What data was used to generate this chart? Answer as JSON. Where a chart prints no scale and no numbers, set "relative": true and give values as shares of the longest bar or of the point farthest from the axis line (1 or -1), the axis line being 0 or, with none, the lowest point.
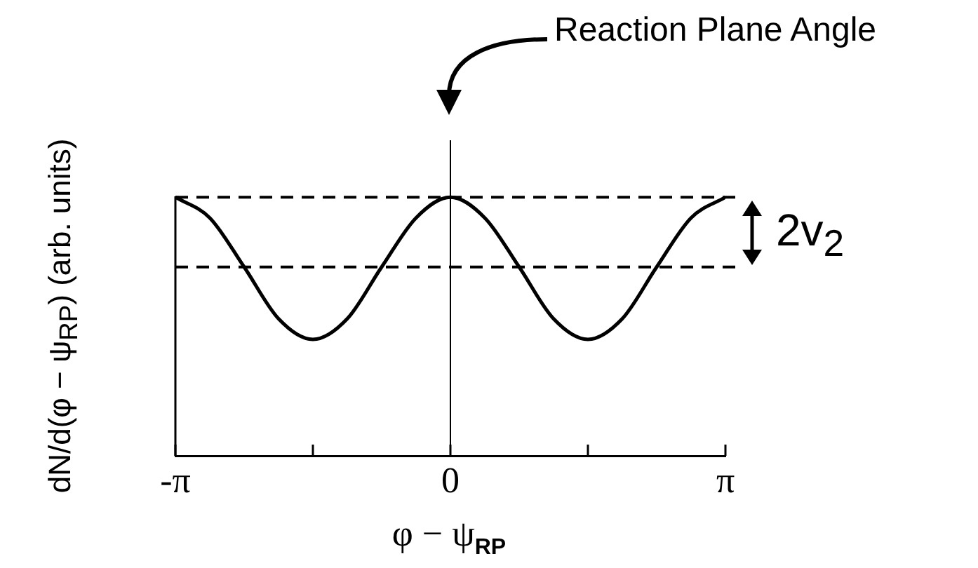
{
  "chart_data": {
    "type": "line",
    "relative": true,
    "xlabel": "φ − ψ$_{RP}$",
    "ylabel": "dN/d(φ − ψ$_{RP}$) (arb. units)",
    "annotations": [
      "Reaction Plane Angle",
      "2v$_{2}$"
    ],
    "x": [
      -3.1416,
      -2.7489,
      -2.3562,
      -1.9635,
      -1.5708,
      -1.1781,
      -0.7854,
      -0.3927,
      0,
      0.3927,
      0.7854,
      1.1781,
      1.5708,
      1.9635,
      2.3562,
      2.7489,
      3.1416
    ],
    "series": [
      {
        "color": "#000000",
        "values": [
          1,
          0.92,
          0.73,
          0.53,
          0.45,
          0.53,
          0.73,
          0.92,
          1,
          0.92,
          0.73,
          0.53,
          0.45,
          0.53,
          0.73,
          0.92,
          1
        ]
      }
    ],
    "xlim": [
      -3.1416,
      3.1416
    ],
    "xticks": [
      {
        "value": -3.1416,
        "label": "-π"
      },
      {
        "value": -1.5708,
        "label": null
      },
      0,
      {
        "value": 1.5708,
        "label": null
      },
      {
        "value": 3.1416,
        "label": "π"
      }
    ],
    "ref_lines": [
      {
        "axis": "y",
        "value": 1,
        "line_style": "dashed",
        "color": "#000000"
      },
      {
        "axis": "y",
        "value": 0.73,
        "line_style": "dashed",
        "color": "#000000"
      },
      {
        "axis": "x",
        "value": 0,
        "line_style": "solid",
        "color": "#000000"
      }
    ],
    "grid": false,
    "legend": false,
    "marker": "none",
    "line_style": "solid"
  }
}
